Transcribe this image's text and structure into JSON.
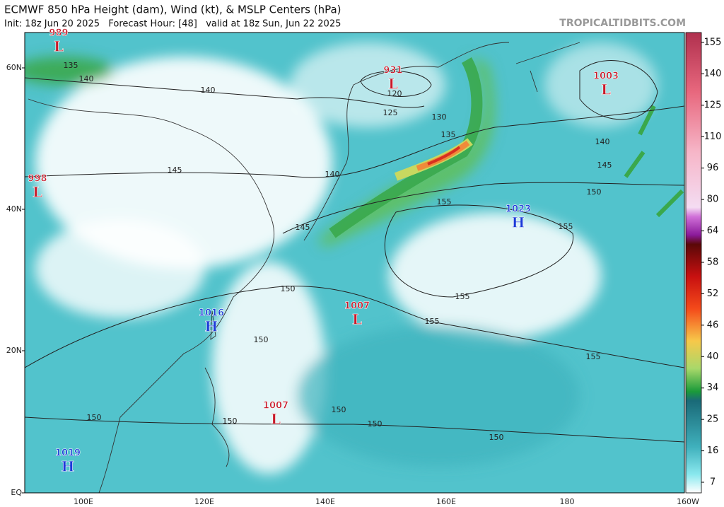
{
  "header": {
    "title": "ECMWF 850 hPa Height (dam), Wind (kt), & MSLP Centers (hPa)",
    "subtitle": "Init: 18z Jun 20 2025   Forecast Hour: [48]   valid at 18z Sun, Jun 22 2025",
    "brand": "TROPICALTIDBITS.COM"
  },
  "map": {
    "lat_labels": [
      "60N",
      "40N",
      "20N",
      "EQ"
    ],
    "lon_labels": [
      "100E",
      "120E",
      "140E",
      "160E",
      "180",
      "160W"
    ],
    "centers": [
      {
        "value": 989,
        "type": "L"
      },
      {
        "value": 931,
        "type": "L"
      },
      {
        "value": 1003,
        "type": "L"
      },
      {
        "value": 998,
        "type": "L"
      },
      {
        "value": 1023,
        "type": "H"
      },
      {
        "value": 1016,
        "type": "H"
      },
      {
        "value": 1007,
        "type": "L"
      },
      {
        "value": 1007,
        "type": "L"
      },
      {
        "value": 1019,
        "type": "H"
      }
    ],
    "contour_labels": [
      135,
      140,
      140,
      120,
      125,
      130,
      135,
      145,
      140,
      140,
      145,
      150,
      155,
      155,
      145,
      150,
      155,
      155,
      150,
      155,
      150,
      150,
      150,
      150,
      150
    ]
  },
  "colorbar": {
    "ticks": [
      155,
      140,
      125,
      110,
      96,
      80,
      64,
      58,
      52,
      46,
      40,
      34,
      25,
      16,
      7
    ]
  }
}
